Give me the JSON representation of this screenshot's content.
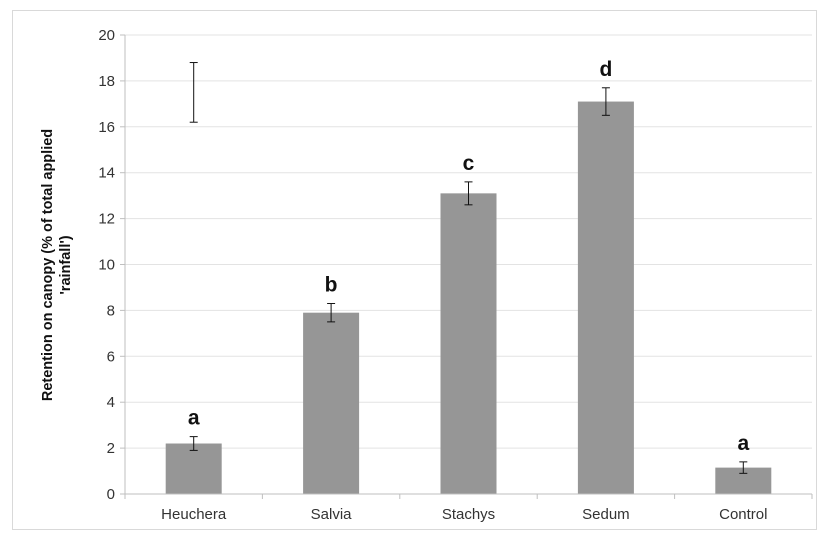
{
  "chart_data": {
    "type": "bar",
    "title": "",
    "xlabel": "",
    "ylabel_line1": "Retention on canopy (% of total applied",
    "ylabel_line2": "'rainfall')",
    "categories": [
      "Heuchera",
      "Salvia",
      "Stachys",
      "Sedum",
      "Control"
    ],
    "values": [
      2.2,
      7.9,
      13.1,
      17.1,
      1.15
    ],
    "errors": [
      0.3,
      0.4,
      0.5,
      0.6,
      0.25
    ],
    "significance": [
      "a",
      "b",
      "c",
      "d",
      "a"
    ],
    "reference_error_bar": {
      "low": 16.2,
      "high": 18.8
    },
    "ylim": [
      0,
      20
    ],
    "yticks": [
      0,
      2,
      4,
      6,
      8,
      10,
      12,
      14,
      16,
      18,
      20
    ],
    "grid": true,
    "bar_color": "#969696",
    "grid_color": "#e3e3e3",
    "axis_color": "#bfbfbf"
  }
}
